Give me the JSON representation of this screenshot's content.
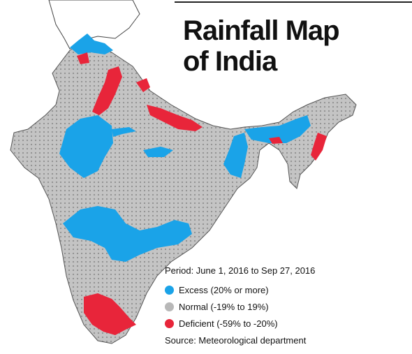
{
  "title": {
    "line1": "Rainfall Map",
    "line2": "of India"
  },
  "legend": {
    "period": "Period: June 1, 2016 to Sep 27, 2016",
    "items": [
      {
        "label": "Excess (20% or more)",
        "color": "#1aa3e8"
      },
      {
        "label": "Normal (-19% to 19%)",
        "color": "#b8b8b8"
      },
      {
        "label": "Deficient (-59% to -20%)",
        "color": "#e8253a"
      }
    ],
    "source": "Source: Meteorological department"
  }
}
